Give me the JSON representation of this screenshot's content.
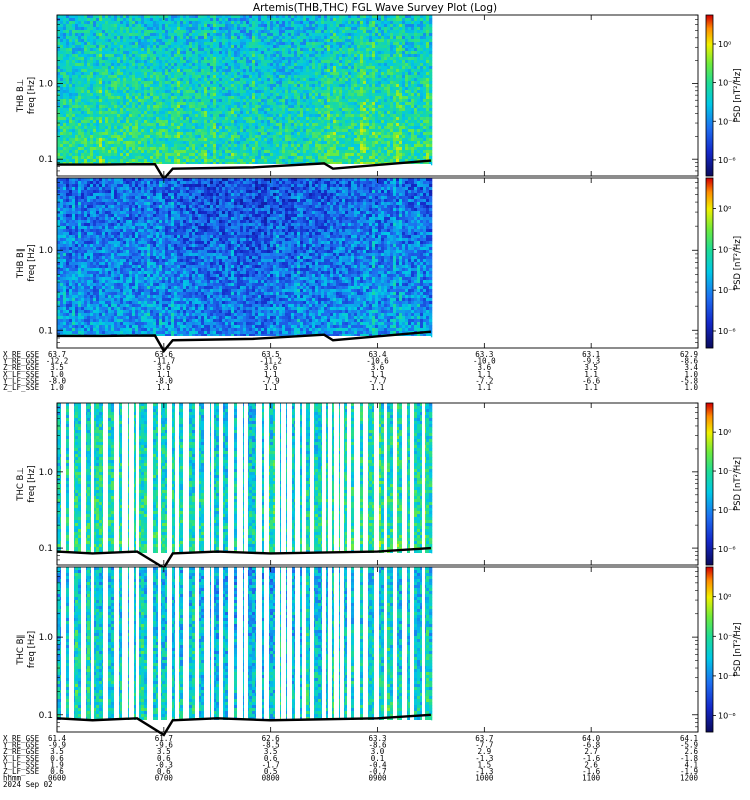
{
  "title": "Artemis(THB,THC) FGL Wave Survey Plot (Log)",
  "chart_data": [
    {
      "type": "heatmap",
      "panel": "THB B⊥",
      "ylabel": "THB B⊥\nfreq [Hz]",
      "ylabel_lines": [
        "THB B⊥",
        "freq [Hz]"
      ],
      "yscale": "log",
      "ylim": [
        0.06,
        8
      ],
      "yticks": [
        "0.1",
        "1.0"
      ],
      "colorbar_label": "PSD [nT²/Hz]",
      "colorbar_ticks": [
        "10⁰",
        "10⁻²",
        "10⁻⁴",
        "10⁻⁶"
      ],
      "data_coverage_end": "0930",
      "gap_pattern": "continuous",
      "base_level": 0.58,
      "high_freq_level": 0.45,
      "cutoff_line": {
        "x": [
          "0600",
          "0625",
          "0655",
          "0700",
          "0705",
          "0750",
          "0830",
          "0835",
          "0930"
        ],
        "y": [
          0.085,
          0.085,
          0.086,
          0.055,
          0.075,
          0.078,
          0.088,
          0.075,
          0.096
        ]
      }
    },
    {
      "type": "heatmap",
      "panel": "THB B∥",
      "ylabel": "THB B∥\nfreq [Hz]",
      "ylabel_lines": [
        "THB B∥",
        "freq [Hz]"
      ],
      "yscale": "log",
      "ylim": [
        0.06,
        8
      ],
      "yticks": [
        "0.1",
        "1.0"
      ],
      "colorbar_label": "PSD [nT²/Hz]",
      "colorbar_ticks": [
        "10⁰",
        "10⁻²",
        "10⁻⁴",
        "10⁻⁶"
      ],
      "data_coverage_end": "0930",
      "gap_pattern": "continuous",
      "base_level": 0.36,
      "high_freq_level": 0.25,
      "cutoff_line": {
        "x": [
          "0600",
          "0625",
          "0655",
          "0700",
          "0705",
          "0750",
          "0830",
          "0835",
          "0930"
        ],
        "y": [
          0.085,
          0.085,
          0.086,
          0.055,
          0.075,
          0.078,
          0.088,
          0.075,
          0.096
        ]
      }
    },
    {
      "type": "heatmap",
      "panel": "THC B⊥",
      "ylabel": "THC B⊥\nfreq [Hz]",
      "ylabel_lines": [
        "THC B⊥",
        "freq [Hz]"
      ],
      "yscale": "log",
      "ylim": [
        0.06,
        8
      ],
      "yticks": [
        "0.1",
        "1.0"
      ],
      "colorbar_label": "PSD [nT²/Hz]",
      "colorbar_ticks": [
        "10⁰",
        "10⁻²",
        "10⁻⁴",
        "10⁻⁶"
      ],
      "data_coverage_end": "0930",
      "gap_pattern": "gapped",
      "base_level": 0.56,
      "high_freq_level": 0.48,
      "cutoff_line": {
        "x": [
          "0600",
          "0620",
          "0645",
          "0700",
          "0705",
          "0730",
          "0800",
          "0900",
          "0930"
        ],
        "y": [
          0.09,
          0.085,
          0.09,
          0.055,
          0.085,
          0.09,
          0.085,
          0.09,
          0.1
        ]
      }
    },
    {
      "type": "heatmap",
      "panel": "THC B∥",
      "ylabel": "THC B∥\nfreq [Hz]",
      "ylabel_lines": [
        "THC B∥",
        "freq [Hz]"
      ],
      "yscale": "log",
      "ylim": [
        0.06,
        8
      ],
      "yticks": [
        "0.1",
        "1.0"
      ],
      "colorbar_label": "PSD [nT²/Hz]",
      "colorbar_ticks": [
        "10⁰",
        "10⁻²",
        "10⁻⁴",
        "10⁻⁶"
      ],
      "data_coverage_end": "0930",
      "gap_pattern": "gapped",
      "base_level": 0.5,
      "high_freq_level": 0.42,
      "cutoff_line": {
        "x": [
          "0600",
          "0620",
          "0645",
          "0700",
          "0705",
          "0730",
          "0800",
          "0900",
          "0930"
        ],
        "y": [
          0.09,
          0.085,
          0.09,
          0.055,
          0.085,
          0.09,
          0.085,
          0.09,
          0.1
        ]
      }
    }
  ],
  "ephemeris_thb": {
    "labels": [
      "X_RE_GSE",
      "Y_RE_GSE",
      "Z_RE_GSE",
      "X_LF_SSE",
      "Y_LF_SSE",
      "Z_LF_SSE"
    ],
    "columns": [
      [
        "63.7",
        "-12.2",
        "3.5",
        "1.0",
        "-8.0",
        "1.0"
      ],
      [
        "63.6",
        "-11.7",
        "3.6",
        "1.1",
        "-8.0",
        "1.1"
      ],
      [
        "63.5",
        "-11.2",
        "3.6",
        "1.1",
        "-7.9",
        "1.1"
      ],
      [
        "63.4",
        "-10.6",
        "3.6",
        "1.1",
        "-7.7",
        "1.1"
      ],
      [
        "63.3",
        "-10.0",
        "3.6",
        "1.1",
        "-7.2",
        "1.1"
      ],
      [
        "63.1",
        "-9.3",
        "3.5",
        "1.1",
        "-6.6",
        "1.1"
      ],
      [
        "62.9",
        "-8.6",
        "3.4",
        "1.0",
        "-5.8",
        "1.0"
      ]
    ]
  },
  "ephemeris_thc": {
    "labels": [
      "X_RE_GSE",
      "Y_RE_GSE",
      "Z_RE_GSE",
      "X_LF_SSE",
      "Y_LF_SSE",
      "Z_LF_SSE",
      "hhmm",
      "2024 Sep 02"
    ],
    "columns": [
      [
        "61.4",
        "-9.9",
        "3.5",
        "0.6",
        "1.9",
        "0.6",
        "0600"
      ],
      [
        "61.7",
        "-9.6",
        "3.5",
        "0.6",
        "-0.3",
        "0.6",
        "0700"
      ],
      [
        "62.6",
        "-8.5",
        "3.5",
        "0.6",
        "-1.7",
        "0.5",
        "0800"
      ],
      [
        "63.3",
        "-8.6",
        "3.0",
        "0.1",
        "-0.4",
        "-0.7",
        "0900"
      ],
      [
        "63.7",
        "-7.7",
        "2.9",
        "-1.3",
        "1.5",
        "-1.3",
        "1000"
      ],
      [
        "64.0",
        "-6.8",
        "2.7",
        "-1.6",
        "2.6",
        "-1.6",
        "1100"
      ],
      [
        "64.1",
        "-5.9",
        "2.6",
        "-1.8",
        "4.1",
        "-1.9",
        "1200"
      ]
    ]
  }
}
